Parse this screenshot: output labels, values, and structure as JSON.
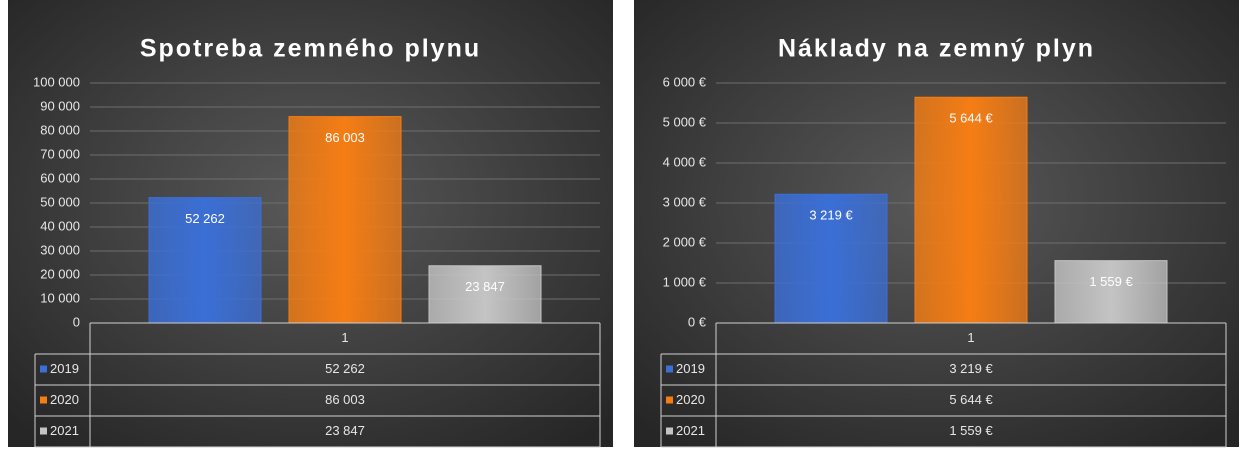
{
  "chart_data": [
    {
      "type": "bar",
      "title": "Spotreba zemného plynu",
      "categories": [
        "1"
      ],
      "series": [
        {
          "name": "2019",
          "color": "#3b6fd6",
          "values": [
            52262
          ],
          "value_labels": [
            "52 262"
          ]
        },
        {
          "name": "2020",
          "color": "#f57d14",
          "values": [
            86003
          ],
          "value_labels": [
            "86 003"
          ]
        },
        {
          "name": "2021",
          "color": "#c4c4c4",
          "values": [
            23847
          ],
          "value_labels": [
            "23 847"
          ]
        }
      ],
      "ylim": [
        0,
        100000
      ],
      "yticks": [
        0,
        {
          "value": 10000,
          "label": "10 000"
        },
        {
          "value": 20000,
          "label": "20 000"
        },
        {
          "value": 30000,
          "label": "30 000"
        },
        {
          "value": 40000,
          "label": "40 000"
        },
        {
          "value": 50000,
          "label": "50 000"
        },
        {
          "value": 60000,
          "label": "60 000"
        },
        {
          "value": 70000,
          "label": "70 000"
        },
        {
          "value": 80000,
          "label": "80 000"
        },
        {
          "value": 90000,
          "label": "90 000"
        },
        {
          "value": 100000,
          "label": "100 000"
        }
      ],
      "grid": true,
      "data_table": true
    },
    {
      "type": "bar",
      "title": "Náklady na zemný plyn",
      "categories": [
        "1"
      ],
      "series": [
        {
          "name": "2019",
          "color": "#3b6fd6",
          "values": [
            3219
          ],
          "value_labels": [
            "3 219 €"
          ]
        },
        {
          "name": "2020",
          "color": "#f57d14",
          "values": [
            5644
          ],
          "value_labels": [
            "5 644 €"
          ]
        },
        {
          "name": "2021",
          "color": "#c4c4c4",
          "values": [
            1559
          ],
          "value_labels": [
            "1 559 €"
          ]
        }
      ],
      "ylim": [
        0,
        6000
      ],
      "yticks": [
        {
          "value": 0,
          "label": "0 €"
        },
        {
          "value": 1000,
          "label": "1 000 €"
        },
        {
          "value": 2000,
          "label": "2 000 €"
        },
        {
          "value": 3000,
          "label": "3 000 €"
        },
        {
          "value": 4000,
          "label": "4 000 €"
        },
        {
          "value": 5000,
          "label": "5 000 €"
        },
        {
          "value": 6000,
          "label": "6 000 €"
        }
      ],
      "grid": true,
      "data_table": true
    }
  ]
}
